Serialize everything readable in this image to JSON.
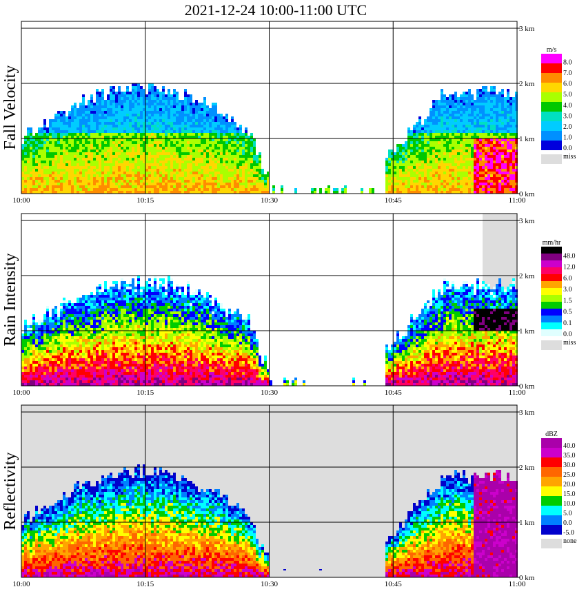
{
  "chart_data": {
    "type": "heatmap",
    "title": "2021-12-24   10:00-11:00 UTC",
    "x_ticks": [
      "10:00",
      "10:15",
      "10:30",
      "10:45",
      "11:00"
    ],
    "y_ticks": [
      "0 km",
      "1 km",
      "2 km",
      "3 km"
    ],
    "xlim_minutes": [
      0,
      60
    ],
    "ylim_km": [
      0,
      3.0
    ],
    "grid": true,
    "panels": [
      {
        "ylabel": "Fall Velocity",
        "legend_unit": "m/s",
        "legend_labels": [
          "8.0",
          "7.0",
          "6.0",
          "5.0",
          "4.0",
          "3.0",
          "2.0",
          "1.0",
          "0.0"
        ],
        "legend_colors": [
          "#ff00ff",
          "#ff0000",
          "#ff8c00",
          "#ffd700",
          "#aaff00",
          "#00c800",
          "#00e0c0",
          "#00ccff",
          "#0090ff",
          "#0000dd"
        ],
        "missing_label": "miss",
        "missing_color": "#dddddd"
      },
      {
        "ylabel": "Rain Intensity",
        "legend_unit": "mm/hr",
        "legend_labels": [
          "48.0",
          "12.0",
          "6.0",
          "3.0",
          "1.5",
          "0.5",
          "0.1",
          "0.0"
        ],
        "legend_colors": [
          "#000000",
          "#800080",
          "#cc00cc",
          "#ff0066",
          "#ff0000",
          "#ffa500",
          "#ffff00",
          "#aaff00",
          "#00cc00",
          "#0000ff",
          "#0080ff",
          "#00ffff",
          "#e0ffff"
        ],
        "missing_label": "miss",
        "missing_color": "#dddddd"
      },
      {
        "ylabel": "Reflectivity",
        "legend_unit": "dBZ",
        "legend_labels": [
          "40.0",
          "35.0",
          "30.0",
          "25.0",
          "20.0",
          "15.0",
          "10.0",
          "5.0",
          "0.0",
          "-5.0"
        ],
        "legend_colors": [
          "#aa00aa",
          "#cc00cc",
          "#ff0000",
          "#ff6600",
          "#ffa500",
          "#ffff00",
          "#00cc00",
          "#00ffff",
          "#0080ff",
          "#0000cc"
        ],
        "missing_label": "none",
        "missing_color": "#dddddd"
      }
    ]
  }
}
